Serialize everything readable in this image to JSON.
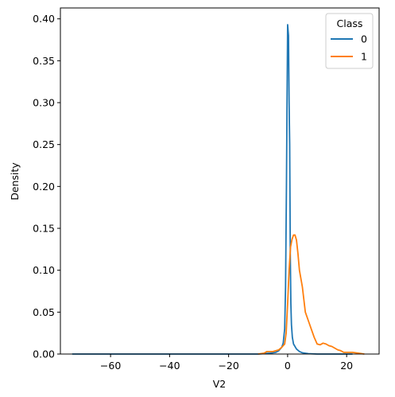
{
  "chart_data": {
    "type": "line",
    "xlabel": "V2",
    "ylabel": "Density",
    "xlim": [
      -77,
      31
    ],
    "ylim": [
      0,
      0.413
    ],
    "xticks": [
      -60,
      -40,
      -20,
      0,
      20
    ],
    "xtick_labels": [
      "−60",
      "−40",
      "−20",
      "0",
      "20"
    ],
    "yticks": [
      0.0,
      0.05,
      0.1,
      0.15,
      0.2,
      0.25,
      0.3,
      0.35,
      0.4
    ],
    "ytick_labels": [
      "0.00",
      "0.05",
      "0.10",
      "0.15",
      "0.20",
      "0.25",
      "0.30",
      "0.35",
      "0.40"
    ],
    "grid": false,
    "legend": {
      "title": "Class",
      "placement": "top-right"
    },
    "series": [
      {
        "name": "0",
        "color": "#1f77b4",
        "points": [
          [
            -73,
            0
          ],
          [
            -40,
            0
          ],
          [
            -20,
            0
          ],
          [
            -10,
            0
          ],
          [
            -6,
            0.001
          ],
          [
            -4,
            0.002
          ],
          [
            -3,
            0.004
          ],
          [
            -2,
            0.008
          ],
          [
            -1.5,
            0.013
          ],
          [
            -1,
            0.03
          ],
          [
            -0.7,
            0.08
          ],
          [
            -0.4,
            0.2
          ],
          [
            -0.2,
            0.3
          ],
          [
            0,
            0.393
          ],
          [
            0.3,
            0.38
          ],
          [
            0.5,
            0.3
          ],
          [
            0.7,
            0.25
          ],
          [
            0.9,
            0.12
          ],
          [
            1.1,
            0.06
          ],
          [
            1.3,
            0.035
          ],
          [
            1.6,
            0.02
          ],
          [
            2,
            0.012
          ],
          [
            3,
            0.006
          ],
          [
            4,
            0.003
          ],
          [
            5,
            0.0015
          ],
          [
            7,
            0.0005
          ],
          [
            10,
            0
          ],
          [
            20,
            0
          ],
          [
            22,
            0
          ]
        ]
      },
      {
        "name": "1",
        "color": "#ff7f0e",
        "points": [
          [
            -10,
            0
          ],
          [
            -8,
            0.001
          ],
          [
            -7,
            0.003
          ],
          [
            -5,
            0.003
          ],
          [
            -3,
            0.005
          ],
          [
            -2,
            0.008
          ],
          [
            -1,
            0.012
          ],
          [
            -0.5,
            0.025
          ],
          [
            0,
            0.06
          ],
          [
            0.5,
            0.1
          ],
          [
            1,
            0.128
          ],
          [
            1.5,
            0.137
          ],
          [
            2,
            0.142
          ],
          [
            2.5,
            0.142
          ],
          [
            3,
            0.136
          ],
          [
            3.5,
            0.12
          ],
          [
            4,
            0.1
          ],
          [
            5,
            0.08
          ],
          [
            6,
            0.05
          ],
          [
            7,
            0.04
          ],
          [
            8,
            0.03
          ],
          [
            9,
            0.02
          ],
          [
            10,
            0.012
          ],
          [
            11,
            0.011
          ],
          [
            12,
            0.013
          ],
          [
            13,
            0.012
          ],
          [
            14,
            0.01
          ],
          [
            15,
            0.009
          ],
          [
            16,
            0.007
          ],
          [
            17,
            0.005
          ],
          [
            18,
            0.004
          ],
          [
            19,
            0.002
          ],
          [
            20,
            0.002
          ],
          [
            22,
            0.002
          ],
          [
            24,
            0.001
          ],
          [
            26,
            0
          ]
        ]
      }
    ]
  }
}
